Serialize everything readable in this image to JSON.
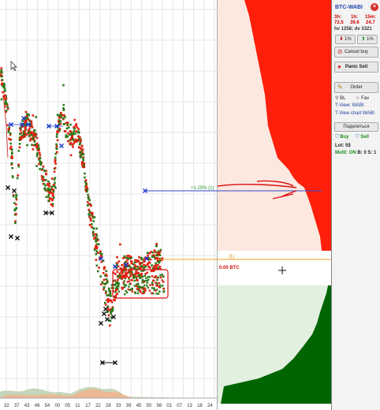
{
  "chart": {
    "time_labels": [
      "32",
      "37",
      "43",
      "49",
      "54",
      "00",
      "05",
      "11",
      "17",
      "22",
      "28",
      "33",
      "39",
      "45",
      "50",
      "56",
      "01",
      "07",
      "13",
      "18",
      "24"
    ],
    "order_line_label": "+1.25% (1)",
    "order_line_label_orange": "(1)",
    "colors": {
      "buy_dot": "#2a7a1a",
      "sell_dot": "#e02010",
      "cross": "#111111",
      "blue_marker": "#1a3acc",
      "order_line": "#3344cc",
      "orange_line": "#f0a020",
      "annotation": "#d81010"
    }
  },
  "depth": {
    "last_price_label": "0.00 BTC",
    "ask_fill": "#ff1f0a",
    "ask_bg": "#fde8e0",
    "bid_fill": "#006400",
    "bid_bg": "#e2f0df"
  },
  "panel": {
    "pair": "BTC-WABI",
    "close_icon": "x-circle-icon",
    "close_glyph": "×",
    "headers": {
      "h3": "3h:",
      "h1": "1h:",
      "m15": "15m:"
    },
    "values": {
      "h3": "72.5",
      "h1": "39.6",
      "m15": "24.7"
    },
    "hv_dv": "hv 1258; dv 3321",
    "pct_down": "1%",
    "pct_up": "1%",
    "cancel_buy": "Cancel buy",
    "panic_sell": "Panic Sell",
    "order": "Order",
    "bl": "BL",
    "fav": "Fav",
    "tview": "T-View: WABI",
    "tview_chart": "T-View chart WABI",
    "share": "Поделиться",
    "buy": "Buy",
    "sell": "Sell",
    "lot": "Lot: 5$",
    "multi": "Multi: ON",
    "multi_b": "B: 0",
    "multi_s": "S: 1"
  }
}
